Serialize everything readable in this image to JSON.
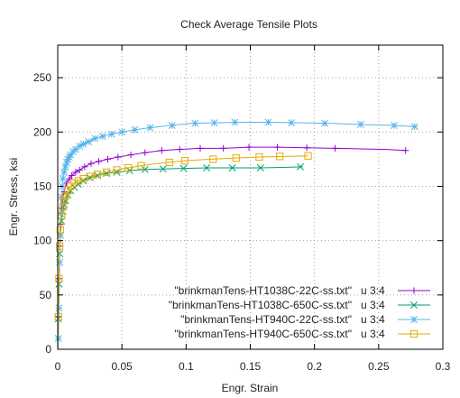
{
  "chart_data": {
    "type": "line",
    "title": "Check Average Tensile Plots",
    "xlabel": "Engr. Strain",
    "ylabel": "Engr. Stress, ksi",
    "xlim": [
      0,
      0.3
    ],
    "ylim": [
      0,
      280
    ],
    "x_ticks": [
      0,
      0.05,
      0.1,
      0.15,
      0.2,
      0.25,
      0.3
    ],
    "x_tick_labels": [
      "0",
      "0.05",
      "0.1",
      "0.15",
      "0.2",
      "0.25",
      "0.3"
    ],
    "y_ticks": [
      0,
      50,
      100,
      150,
      200,
      250
    ],
    "y_tick_labels": [
      "0",
      "50",
      "100",
      "150",
      "200",
      "250"
    ],
    "grid": true,
    "legend_position": "bottom-right",
    "series": [
      {
        "name": "\"brinkmanTens-HT1038C-22C-ss.txt\"",
        "using": "u 3:4",
        "color": "#9400d3",
        "marker": "plus",
        "points": [
          [
            0,
            0
          ],
          [
            0.0005,
            30
          ],
          [
            0.001,
            65
          ],
          [
            0.0015,
            95
          ],
          [
            0.002,
            115
          ],
          [
            0.003,
            130
          ],
          [
            0.004,
            140
          ],
          [
            0.005,
            145
          ],
          [
            0.006,
            150
          ],
          [
            0.007,
            153
          ],
          [
            0.009,
            157
          ],
          [
            0.011,
            160
          ],
          [
            0.014,
            163
          ],
          [
            0.017,
            165
          ],
          [
            0.021,
            168
          ],
          [
            0.026,
            171
          ],
          [
            0.032,
            173
          ],
          [
            0.039,
            175
          ],
          [
            0.047,
            177
          ],
          [
            0.057,
            179
          ],
          [
            0.068,
            181
          ],
          [
            0.081,
            183
          ],
          [
            0.095,
            184
          ],
          [
            0.111,
            185
          ],
          [
            0.129,
            185
          ],
          [
            0.149,
            186
          ],
          [
            0.171,
            186
          ],
          [
            0.194,
            185.5
          ],
          [
            0.216,
            185
          ],
          [
            0.236,
            184.5
          ],
          [
            0.255,
            184
          ],
          [
            0.271,
            183
          ]
        ],
        "marker_points": [
          [
            0.0005,
            30
          ],
          [
            0.001,
            65
          ],
          [
            0.0015,
            95
          ],
          [
            0.002,
            115
          ],
          [
            0.003,
            130
          ],
          [
            0.004,
            140
          ],
          [
            0.005,
            145
          ],
          [
            0.007,
            153
          ],
          [
            0.009,
            157
          ],
          [
            0.011,
            160
          ],
          [
            0.014,
            163
          ],
          [
            0.017,
            165
          ],
          [
            0.021,
            168
          ],
          [
            0.026,
            171
          ],
          [
            0.032,
            173
          ],
          [
            0.039,
            175
          ],
          [
            0.047,
            177
          ],
          [
            0.057,
            179
          ],
          [
            0.068,
            181
          ],
          [
            0.081,
            183
          ],
          [
            0.095,
            184
          ],
          [
            0.111,
            185
          ],
          [
            0.129,
            185
          ],
          [
            0.149,
            186
          ],
          [
            0.171,
            186
          ],
          [
            0.194,
            185.5
          ],
          [
            0.216,
            185
          ],
          [
            0.271,
            183
          ]
        ]
      },
      {
        "name": "\"brinkmanTens-HT1038C-650C-ss.txt\"",
        "using": "u 3:4",
        "color": "#009e73",
        "marker": "cross",
        "points": [
          [
            0,
            0
          ],
          [
            0.0005,
            28
          ],
          [
            0.001,
            60
          ],
          [
            0.0015,
            88
          ],
          [
            0.002,
            105
          ],
          [
            0.003,
            118
          ],
          [
            0.004,
            127
          ],
          [
            0.005,
            133
          ],
          [
            0.006,
            137
          ],
          [
            0.008,
            142
          ],
          [
            0.01,
            146
          ],
          [
            0.013,
            149
          ],
          [
            0.016,
            152
          ],
          [
            0.02,
            155
          ],
          [
            0.025,
            158
          ],
          [
            0.031,
            160
          ],
          [
            0.038,
            162
          ],
          [
            0.046,
            163
          ],
          [
            0.056,
            164.5
          ],
          [
            0.068,
            165.5
          ],
          [
            0.082,
            166
          ],
          [
            0.098,
            166.5
          ],
          [
            0.116,
            167
          ],
          [
            0.136,
            167
          ],
          [
            0.158,
            167
          ],
          [
            0.179,
            167.5
          ],
          [
            0.191,
            168
          ]
        ],
        "marker_points": [
          [
            0.0005,
            28
          ],
          [
            0.001,
            60
          ],
          [
            0.0015,
            88
          ],
          [
            0.002,
            105
          ],
          [
            0.003,
            118
          ],
          [
            0.004,
            127
          ],
          [
            0.005,
            133
          ],
          [
            0.006,
            137
          ],
          [
            0.008,
            142
          ],
          [
            0.01,
            146
          ],
          [
            0.013,
            149
          ],
          [
            0.016,
            152
          ],
          [
            0.02,
            155
          ],
          [
            0.025,
            158
          ],
          [
            0.031,
            160
          ],
          [
            0.038,
            162
          ],
          [
            0.046,
            163
          ],
          [
            0.056,
            164.5
          ],
          [
            0.068,
            165.5
          ],
          [
            0.082,
            166
          ],
          [
            0.098,
            166.5
          ],
          [
            0.116,
            167
          ],
          [
            0.136,
            167
          ],
          [
            0.158,
            167
          ],
          [
            0.189,
            168
          ]
        ]
      },
      {
        "name": "\"brinkmanTens-HT940C-22C-ss.txt\"",
        "using": "u 3:4",
        "color": "#56b4e9",
        "marker": "star",
        "points": [
          [
            0,
            0
          ],
          [
            0.0005,
            10
          ],
          [
            0.001,
            38
          ],
          [
            0.0015,
            80
          ],
          [
            0.002,
            105
          ],
          [
            0.0025,
            125
          ],
          [
            0.003,
            140
          ],
          [
            0.0035,
            150
          ],
          [
            0.004,
            157
          ],
          [
            0.005,
            163
          ],
          [
            0.006,
            168
          ],
          [
            0.007,
            172
          ],
          [
            0.008,
            175
          ],
          [
            0.009,
            177
          ],
          [
            0.01,
            179
          ],
          [
            0.012,
            182
          ],
          [
            0.014,
            184
          ],
          [
            0.017,
            187
          ],
          [
            0.02,
            189
          ],
          [
            0.024,
            191
          ],
          [
            0.029,
            194
          ],
          [
            0.035,
            196
          ],
          [
            0.042,
            198
          ],
          [
            0.05,
            200
          ],
          [
            0.06,
            202
          ],
          [
            0.072,
            204
          ],
          [
            0.087,
            206
          ],
          [
            0.104,
            208
          ],
          [
            0.123,
            208.5
          ],
          [
            0.144,
            209
          ],
          [
            0.165,
            209
          ],
          [
            0.186,
            208.5
          ],
          [
            0.21,
            208
          ],
          [
            0.235,
            207
          ],
          [
            0.262,
            206
          ],
          [
            0.278,
            205
          ]
        ],
        "marker_points": [
          [
            0.0005,
            10
          ],
          [
            0.001,
            38
          ],
          [
            0.0015,
            80
          ],
          [
            0.002,
            105
          ],
          [
            0.0025,
            125
          ],
          [
            0.003,
            140
          ],
          [
            0.0035,
            150
          ],
          [
            0.004,
            157
          ],
          [
            0.005,
            163
          ],
          [
            0.006,
            168
          ],
          [
            0.007,
            172
          ],
          [
            0.008,
            175
          ],
          [
            0.009,
            177
          ],
          [
            0.01,
            179
          ],
          [
            0.012,
            182
          ],
          [
            0.014,
            184
          ],
          [
            0.017,
            187
          ],
          [
            0.02,
            189
          ],
          [
            0.024,
            191
          ],
          [
            0.029,
            194
          ],
          [
            0.035,
            196
          ],
          [
            0.042,
            198
          ],
          [
            0.05,
            200
          ],
          [
            0.06,
            202
          ],
          [
            0.072,
            204
          ],
          [
            0.089,
            206
          ],
          [
            0.107,
            208
          ],
          [
            0.122,
            208.5
          ],
          [
            0.138,
            209
          ],
          [
            0.164,
            209
          ],
          [
            0.182,
            208.5
          ],
          [
            0.208,
            208
          ],
          [
            0.236,
            207
          ],
          [
            0.262,
            206
          ],
          [
            0.278,
            205
          ]
        ]
      },
      {
        "name": "\"brinkmanTens-HT940C-650C-ss.txt\"",
        "using": "u 3:4",
        "color": "#e6ab02",
        "marker": "box",
        "points": [
          [
            0,
            0
          ],
          [
            0.0005,
            30
          ],
          [
            0.001,
            65
          ],
          [
            0.0015,
            95
          ],
          [
            0.002,
            110
          ],
          [
            0.003,
            123
          ],
          [
            0.004,
            131
          ],
          [
            0.005,
            137
          ],
          [
            0.006,
            141
          ],
          [
            0.008,
            146
          ],
          [
            0.01,
            150
          ],
          [
            0.013,
            153
          ],
          [
            0.016,
            155
          ],
          [
            0.02,
            157
          ],
          [
            0.025,
            159
          ],
          [
            0.031,
            161
          ],
          [
            0.038,
            163
          ],
          [
            0.046,
            165
          ],
          [
            0.055,
            167
          ],
          [
            0.065,
            169
          ],
          [
            0.077,
            171
          ],
          [
            0.09,
            172.5
          ],
          [
            0.104,
            174
          ],
          [
            0.12,
            175
          ],
          [
            0.138,
            176
          ],
          [
            0.157,
            177
          ],
          [
            0.177,
            177.5
          ],
          [
            0.195,
            178
          ]
        ],
        "marker_points": [
          [
            0.0005,
            30
          ],
          [
            0.001,
            65
          ],
          [
            0.0015,
            95
          ],
          [
            0.002,
            110
          ],
          [
            0.003,
            123
          ],
          [
            0.004,
            131
          ],
          [
            0.005,
            137
          ],
          [
            0.006,
            141
          ],
          [
            0.008,
            146
          ],
          [
            0.01,
            150
          ],
          [
            0.013,
            153
          ],
          [
            0.016,
            155
          ],
          [
            0.02,
            157
          ],
          [
            0.025,
            159
          ],
          [
            0.031,
            161
          ],
          [
            0.038,
            163
          ],
          [
            0.046,
            165
          ],
          [
            0.055,
            167
          ],
          [
            0.065,
            169
          ],
          [
            0.087,
            172
          ],
          [
            0.099,
            173.5
          ],
          [
            0.121,
            175
          ],
          [
            0.139,
            176
          ],
          [
            0.157,
            177
          ],
          [
            0.173,
            177.5
          ],
          [
            0.195,
            178
          ]
        ]
      }
    ]
  }
}
